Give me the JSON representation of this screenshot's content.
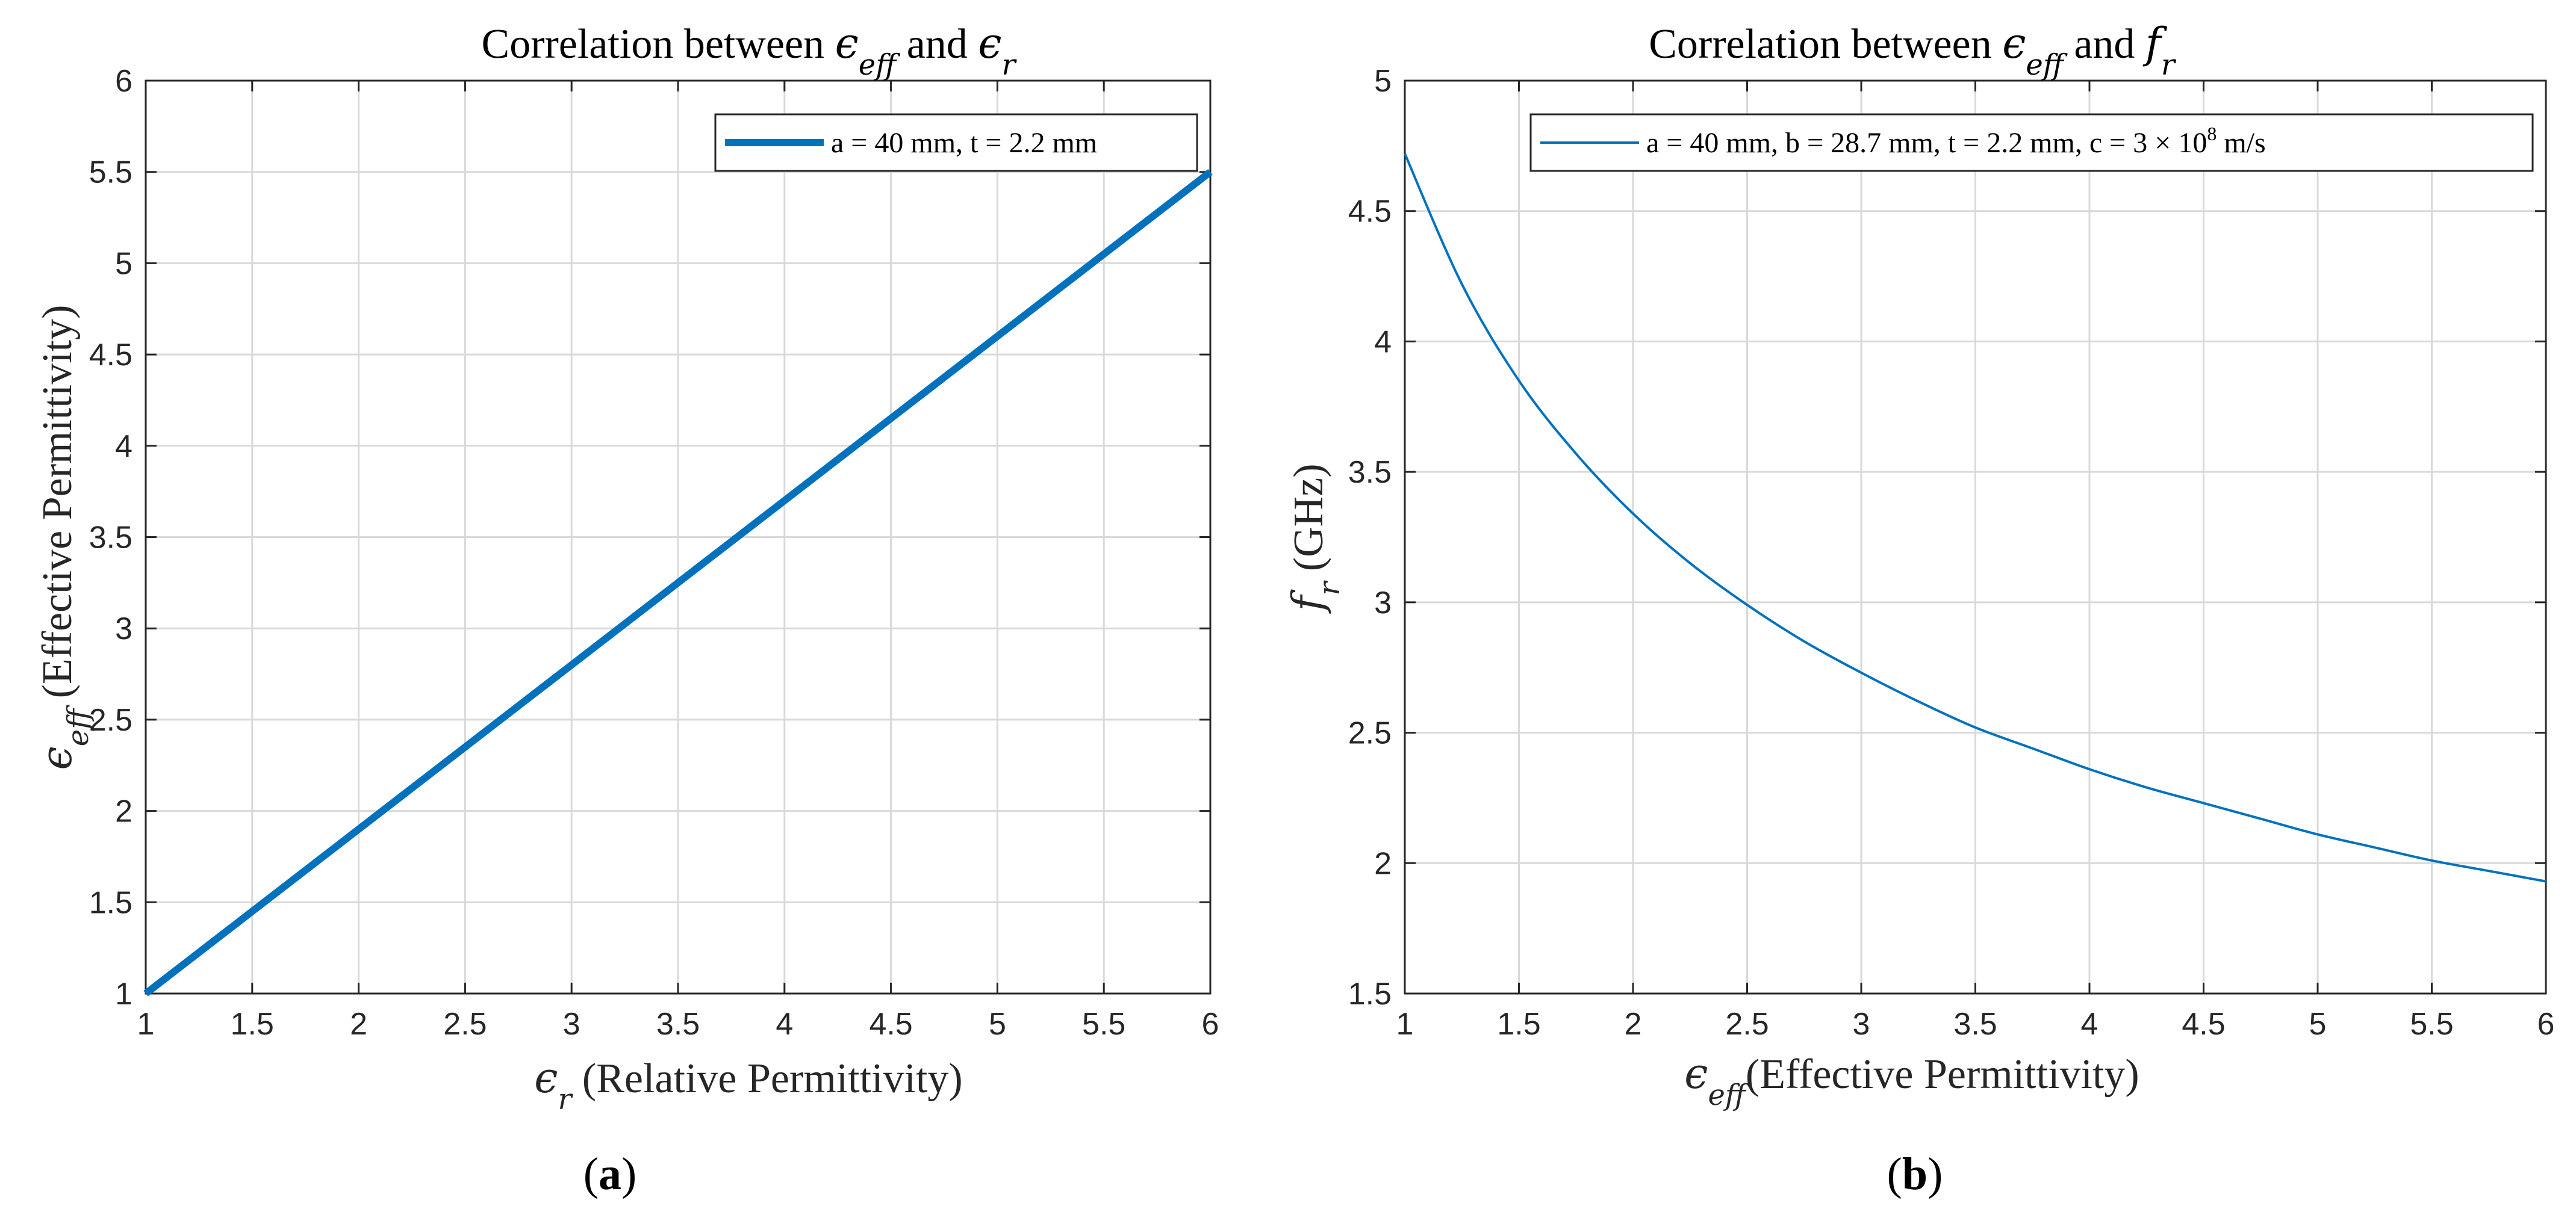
{
  "chart_data": [
    {
      "type": "line",
      "panel_label": "a",
      "title": {
        "prefix": "Correlation between ",
        "sym1": "ϵ",
        "sub1": "eff",
        "mid": " and ",
        "sym2": "ϵ",
        "sub2": "r"
      },
      "xlabel": {
        "sym": "ϵ",
        "sub": "r",
        "text": " (Relative Permittivity)"
      },
      "ylabel": {
        "sym": "ϵ",
        "sub": "eff",
        "text": " (Effective Permittivity)"
      },
      "xlim": [
        1,
        6
      ],
      "ylim": [
        1,
        6
      ],
      "xticks": [
        "1",
        "1.5",
        "2",
        "2.5",
        "3",
        "3.5",
        "4",
        "4.5",
        "5",
        "5.5",
        "6"
      ],
      "yticks": [
        "1",
        "1.5",
        "2",
        "2.5",
        "3",
        "3.5",
        "4",
        "4.5",
        "5",
        "5.5",
        "6"
      ],
      "grid": true,
      "legend": {
        "placement": "top-right",
        "entries": [
          "a = 40 mm, t = 2.2 mm"
        ]
      },
      "series": [
        {
          "name": "a = 40 mm, t = 2.2 mm",
          "color": "#0072bd",
          "x": [
            1,
            6
          ],
          "y": [
            1,
            5.5
          ]
        }
      ]
    },
    {
      "type": "line",
      "panel_label": "b",
      "title": {
        "prefix": "Correlation between ",
        "sym1": "ϵ",
        "sub1": "eff",
        "mid": " and ",
        "sym2": "f",
        "sub2": "r"
      },
      "xlabel": {
        "sym": "ϵ",
        "sub": "eff",
        "text": "(Effective Permittivity)"
      },
      "ylabel": {
        "sym": "f",
        "sub": "r",
        "text": " (GHz)"
      },
      "xlim": [
        1,
        6
      ],
      "ylim": [
        1.5,
        5
      ],
      "xticks": [
        "1",
        "1.5",
        "2",
        "2.5",
        "3",
        "3.5",
        "4",
        "4.5",
        "5",
        "5.5",
        "6"
      ],
      "yticks": [
        "1.5",
        "2",
        "2.5",
        "3",
        "3.5",
        "4",
        "4.5",
        "5"
      ],
      "grid": true,
      "legend": {
        "placement": "top-right",
        "entries_text_before": "a = 40 mm, b = 28.7 mm, t = 2.2 mm, c = 3 × 10",
        "entries_sup": "8",
        "entries_text_after": " m/s"
      },
      "series": [
        {
          "name": "a = 40 mm, b = 28.7 mm, t = 2.2 mm, c = 3 × 10^8 m/s",
          "color": "#0072bd",
          "x": [
            1,
            1.25,
            1.5,
            1.75,
            2,
            2.25,
            2.5,
            2.75,
            3,
            3.25,
            3.5,
            3.75,
            4,
            4.25,
            4.5,
            4.75,
            5,
            5.25,
            5.5,
            5.75,
            6
          ],
          "y": [
            4.72,
            4.22,
            3.85,
            3.57,
            3.34,
            3.15,
            2.99,
            2.85,
            2.73,
            2.62,
            2.52,
            2.44,
            2.36,
            2.29,
            2.23,
            2.17,
            2.11,
            2.06,
            2.01,
            1.97,
            1.93
          ]
        }
      ]
    }
  ]
}
